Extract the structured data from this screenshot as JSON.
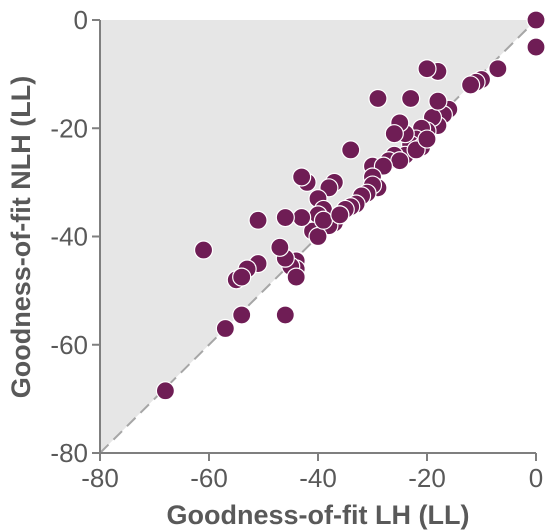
{
  "chart_data": {
    "type": "scatter",
    "title": "",
    "xlabel": "Goodness-of-fit LH (LL)",
    "ylabel": "Goodness-of-fit NLH (LL)",
    "xlim": [
      -80,
      0
    ],
    "ylim": [
      -80,
      0
    ],
    "xticks": [
      -80,
      -60,
      -40,
      -20,
      0
    ],
    "yticks": [
      0,
      -20,
      -40,
      -60,
      -80
    ],
    "grid": false,
    "legend": "none",
    "reference_line": "identity (y = x), dashed",
    "shaded_region": "above identity line",
    "colors": {
      "marker": "#6f1d55",
      "marker_edge": "#ffffff",
      "shade": "#e6e6e6",
      "diagonal": "#a6a6a6",
      "axis": "#7f7f7f",
      "text": "#595959"
    },
    "series": [
      {
        "points": [
          [
            0,
            0
          ],
          [
            0,
            -5
          ],
          [
            -7,
            -9
          ],
          [
            -10,
            -11
          ],
          [
            -11,
            -11.5
          ],
          [
            -12,
            -12
          ],
          [
            -18,
            -9.5
          ],
          [
            -20,
            -9
          ],
          [
            -23,
            -14.5
          ],
          [
            -29,
            -14.5
          ],
          [
            -16,
            -16.5
          ],
          [
            -17,
            -17.5
          ],
          [
            -18,
            -19.5
          ],
          [
            -19,
            -18
          ],
          [
            -18,
            -15
          ],
          [
            -20,
            -20.5
          ],
          [
            -21,
            -20
          ],
          [
            -22,
            -22
          ],
          [
            -23,
            -23
          ],
          [
            -24,
            -21
          ],
          [
            -25,
            -19
          ],
          [
            -26,
            -21
          ],
          [
            -21,
            -23.5
          ],
          [
            -24,
            -25
          ],
          [
            -26,
            -25
          ],
          [
            -27,
            -26
          ],
          [
            -25,
            -26
          ],
          [
            -22,
            -24
          ],
          [
            -20,
            -22
          ],
          [
            -34,
            -24
          ],
          [
            -30,
            -27
          ],
          [
            -28,
            -27
          ],
          [
            -30,
            -29
          ],
          [
            -29,
            -31
          ],
          [
            -30,
            -30.5
          ],
          [
            -31,
            -32
          ],
          [
            -32,
            -32.5
          ],
          [
            -33,
            -34
          ],
          [
            -34,
            -34.5
          ],
          [
            -35,
            -35
          ],
          [
            -36,
            -36
          ],
          [
            -37,
            -37.5
          ],
          [
            -38,
            -38
          ],
          [
            -37,
            -30
          ],
          [
            -38,
            -31
          ],
          [
            -40,
            -33
          ],
          [
            -39,
            -35
          ],
          [
            -40,
            -36
          ],
          [
            -41,
            -39
          ],
          [
            -40,
            -40
          ],
          [
            -42,
            -30
          ],
          [
            -43,
            -29
          ],
          [
            -43,
            -36.5
          ],
          [
            -46,
            -36.5
          ],
          [
            -39,
            -37
          ],
          [
            -36,
            -36
          ],
          [
            -44,
            -44.5
          ],
          [
            -44,
            -46
          ],
          [
            -45,
            -45.5
          ],
          [
            -46,
            -44
          ],
          [
            -47,
            -42
          ],
          [
            -44,
            -47.5
          ],
          [
            -51,
            -37
          ],
          [
            -51,
            -45
          ],
          [
            -53,
            -46
          ],
          [
            -55,
            -48
          ],
          [
            -54,
            -47.5
          ],
          [
            -61,
            -42.5
          ],
          [
            -46,
            -54.5
          ],
          [
            -54,
            -54.5
          ],
          [
            -57,
            -57
          ],
          [
            -68,
            -68.5
          ]
        ]
      }
    ]
  }
}
